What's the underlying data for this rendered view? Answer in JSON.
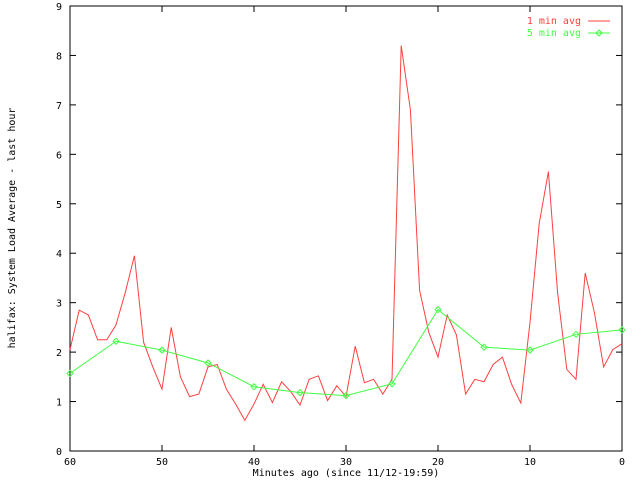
{
  "chart_data": {
    "type": "line",
    "title": "",
    "xlabel": "Minutes ago (since 11/12-19:59)",
    "ylabel": "halifax: System Load Average - last hour",
    "xlim": [
      60,
      0
    ],
    "ylim": [
      0,
      9
    ],
    "x_reversed": true,
    "xticks": [
      "60",
      "50",
      "40",
      "30",
      "20",
      "10",
      "0"
    ],
    "xtick_values": [
      60,
      50,
      40,
      30,
      20,
      10,
      0
    ],
    "yticks": [
      "0",
      "1",
      "2",
      "3",
      "4",
      "5",
      "6",
      "7",
      "8",
      "9"
    ],
    "ytick_values": [
      0,
      1,
      2,
      3,
      4,
      5,
      6,
      7,
      8,
      9
    ],
    "grid": false,
    "legend_position": "top-right",
    "series": [
      {
        "name": "1 min avg",
        "color": "#ff4040",
        "marker": "none",
        "x": [
          60,
          59,
          58,
          57,
          56,
          55,
          54,
          53,
          52,
          51,
          50,
          49,
          48,
          47,
          46,
          45,
          44,
          43,
          42,
          41,
          40,
          39,
          38,
          37,
          36,
          35,
          34,
          33,
          32,
          31,
          30,
          29,
          28,
          27,
          26,
          25,
          24,
          23,
          22,
          21,
          20,
          19,
          18,
          17,
          16,
          15,
          14,
          13,
          12,
          11,
          10,
          9,
          8,
          7,
          6,
          5,
          4,
          3,
          2,
          1,
          0
        ],
        "values": [
          2.05,
          2.85,
          2.75,
          2.25,
          2.25,
          2.55,
          3.2,
          3.95,
          2.2,
          1.7,
          1.25,
          2.5,
          1.5,
          1.1,
          1.15,
          1.7,
          1.75,
          1.25,
          0.95,
          0.62,
          0.95,
          1.35,
          0.98,
          1.4,
          1.2,
          0.93,
          1.45,
          1.52,
          1.02,
          1.32,
          1.1,
          2.12,
          1.38,
          1.45,
          1.15,
          1.45,
          8.2,
          6.9,
          3.25,
          2.4,
          1.9,
          2.75,
          2.35,
          1.15,
          1.45,
          1.4,
          1.75,
          1.9,
          1.35,
          0.97,
          2.6,
          4.6,
          5.65,
          3.2,
          1.65,
          1.45,
          3.6,
          2.8,
          1.7,
          2.05,
          2.17
        ]
      },
      {
        "name": "5 min avg",
        "color": "#40ff40",
        "marker": "diamond",
        "x": [
          60,
          55,
          50,
          45,
          40,
          35,
          30,
          25,
          20,
          15,
          10,
          5,
          0
        ],
        "values": [
          1.57,
          2.22,
          2.04,
          1.78,
          1.3,
          1.18,
          1.12,
          1.36,
          2.86,
          2.1,
          2.04,
          2.36,
          2.45
        ]
      }
    ]
  }
}
